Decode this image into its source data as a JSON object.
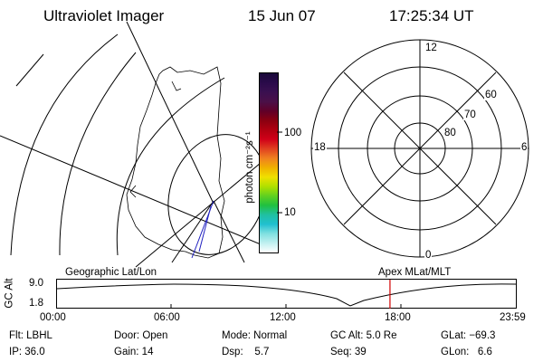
{
  "header": {
    "instrument": "Ultraviolet Imager",
    "date": "15 Jun 07",
    "time": "17:25:34 UT"
  },
  "colorbar": {
    "unit_label": "photon cm⁻²s⁻¹",
    "tick_100": "100",
    "tick_10": "10",
    "colors": [
      "#1a0a3a",
      "#2a0a4a",
      "#3a1050",
      "#4a1048",
      "#600028",
      "#8a0010",
      "#b00010",
      "#d00018",
      "#e04020",
      "#f08020",
      "#f0b000",
      "#f0e000",
      "#b0e000",
      "#60d020",
      "#20c040",
      "#20c0a0",
      "#20c0d0",
      "#80e0e0",
      "#c0f0f0",
      "#ffffff"
    ]
  },
  "polar": {
    "labels": {
      "top": "12",
      "bottom": "0",
      "left": "18",
      "right": "6"
    },
    "lat_labels": [
      "60",
      "70",
      "80"
    ]
  },
  "timeline": {
    "left_title": "Geographic Lat/Lon",
    "right_title": "Apex  MLat/MLT",
    "ylabel": "GC Alt",
    "ymax": "9.0",
    "ymin": "1.8",
    "ticks": [
      "00:00",
      "06:00",
      "12:00",
      "18:00",
      "23:59"
    ],
    "marker_time": "17:25",
    "marker_color": "#d00000"
  },
  "status": {
    "filter": "Flt: LBHL",
    "ip": "IP: 36.0",
    "door": "Door: Open",
    "gain": "Gain: 14",
    "mode": "Mode: Normal",
    "dsp": "Dsp:    5.7",
    "gc_alt": "GC Alt: 5.0 Re",
    "seq": "Seq: 39",
    "glat": "GLat: −69.3",
    "glon": "GLon:   6.6"
  }
}
